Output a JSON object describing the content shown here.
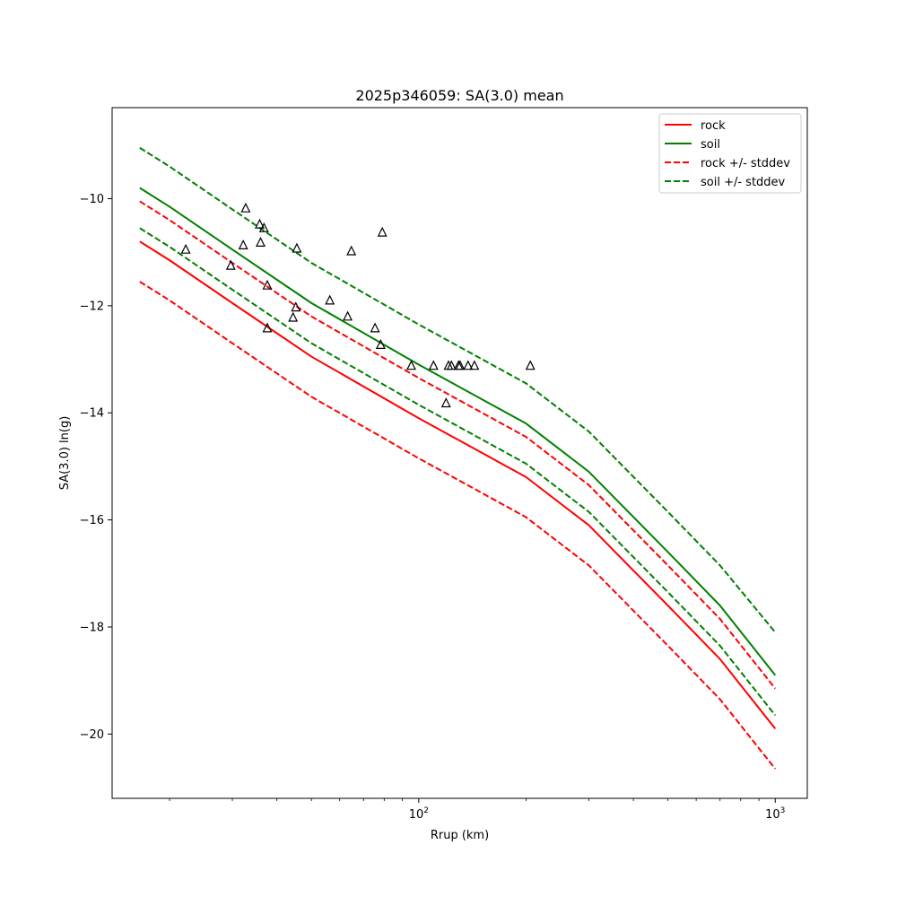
{
  "chart_data": {
    "type": "line",
    "title": "2025p346059: SA(3.0) mean",
    "xlabel": "Rrup (km)",
    "ylabel": "SA(3.0) ln(g)",
    "x_scale": "log",
    "xlim": [
      13.8,
      1230
    ],
    "ylim": [
      -21.2,
      -8.3
    ],
    "grid": false,
    "legend_position": "top-right",
    "x_ticks": [
      {
        "value": 100,
        "base": "10",
        "exponent": "2"
      },
      {
        "value": 1000,
        "base": "10",
        "exponent": "3"
      }
    ],
    "x_minor_ticks": [
      20,
      30,
      40,
      50,
      60,
      70,
      80,
      90,
      200,
      300,
      400,
      500,
      600,
      700,
      800,
      900
    ],
    "y_ticks": [
      {
        "value": -20,
        "label": "−20"
      },
      {
        "value": -18,
        "label": "−18"
      },
      {
        "value": -16,
        "label": "−16"
      },
      {
        "value": -14,
        "label": "−14"
      },
      {
        "value": -12,
        "label": "−12"
      },
      {
        "value": -10,
        "label": "−10"
      }
    ],
    "series": [
      {
        "name": "rock",
        "color": "#ff0000",
        "dash": "solid",
        "in_legend": true,
        "x": [
          16.5,
          20,
          30,
          50,
          100,
          200,
          300,
          500,
          700,
          1000
        ],
        "y": [
          -10.8,
          -11.15,
          -11.95,
          -12.95,
          -14.1,
          -15.2,
          -16.1,
          -17.6,
          -18.6,
          -19.9
        ]
      },
      {
        "name": "soil",
        "color": "#008000",
        "dash": "solid",
        "in_legend": true,
        "x": [
          16.5,
          20,
          30,
          50,
          100,
          200,
          300,
          500,
          700,
          1000
        ],
        "y": [
          -9.8,
          -10.15,
          -10.95,
          -11.95,
          -13.1,
          -14.2,
          -15.1,
          -16.6,
          -17.6,
          -18.9
        ]
      },
      {
        "name": "rock +/- stddev",
        "color": "#ff0000",
        "dash": "dashed",
        "in_legend": true,
        "x": [
          16.5,
          20,
          30,
          50,
          100,
          200,
          300,
          500,
          700,
          1000
        ],
        "y": [
          -11.55,
          -11.9,
          -12.7,
          -13.7,
          -14.85,
          -15.95,
          -16.85,
          -18.35,
          -19.35,
          -20.65
        ]
      },
      {
        "name": "rock +/- stddev",
        "color": "#ff0000",
        "dash": "dashed",
        "in_legend": false,
        "x": [
          16.5,
          20,
          30,
          50,
          100,
          200,
          300,
          500,
          700,
          1000
        ],
        "y": [
          -10.05,
          -10.4,
          -11.2,
          -12.2,
          -13.35,
          -14.45,
          -15.35,
          -16.85,
          -17.85,
          -19.15
        ]
      },
      {
        "name": "soil +/- stddev",
        "color": "#008000",
        "dash": "dashed",
        "in_legend": true,
        "x": [
          16.5,
          20,
          30,
          50,
          100,
          200,
          300,
          500,
          700,
          1000
        ],
        "y": [
          -10.55,
          -10.9,
          -11.7,
          -12.7,
          -13.85,
          -14.95,
          -15.85,
          -17.35,
          -18.35,
          -19.65
        ]
      },
      {
        "name": "soil +/- stddev",
        "color": "#008000",
        "dash": "dashed",
        "in_legend": false,
        "x": [
          16.5,
          20,
          30,
          50,
          100,
          200,
          300,
          500,
          700,
          1000
        ],
        "y": [
          -9.05,
          -9.4,
          -10.2,
          -11.2,
          -12.35,
          -13.45,
          -14.35,
          -15.85,
          -16.85,
          -18.1
        ]
      }
    ],
    "observations": {
      "marker": "triangle-open",
      "color": "#000000",
      "x": [
        22.2,
        29.7,
        32.2,
        32.7,
        35.8,
        36.0,
        36.8,
        37.6,
        37.6,
        44.4,
        45.2,
        45.5,
        56.3,
        63.2,
        64.7,
        75.4,
        78.2,
        79.0,
        95.3,
        110.0,
        119.3,
        121.2,
        123.5,
        129.3,
        130.6,
        137.5,
        143.3,
        205.5
      ],
      "y": [
        -10.95,
        -11.25,
        -10.87,
        -10.18,
        -10.48,
        -10.82,
        -10.55,
        -11.62,
        -12.42,
        -12.22,
        -12.03,
        -10.93,
        -11.9,
        -12.2,
        -10.98,
        -12.42,
        -12.73,
        -10.63,
        -13.12,
        -13.12,
        -13.82,
        -13.12,
        -13.12,
        -13.12,
        -13.12,
        -13.12,
        -13.12,
        -13.12
      ]
    }
  }
}
